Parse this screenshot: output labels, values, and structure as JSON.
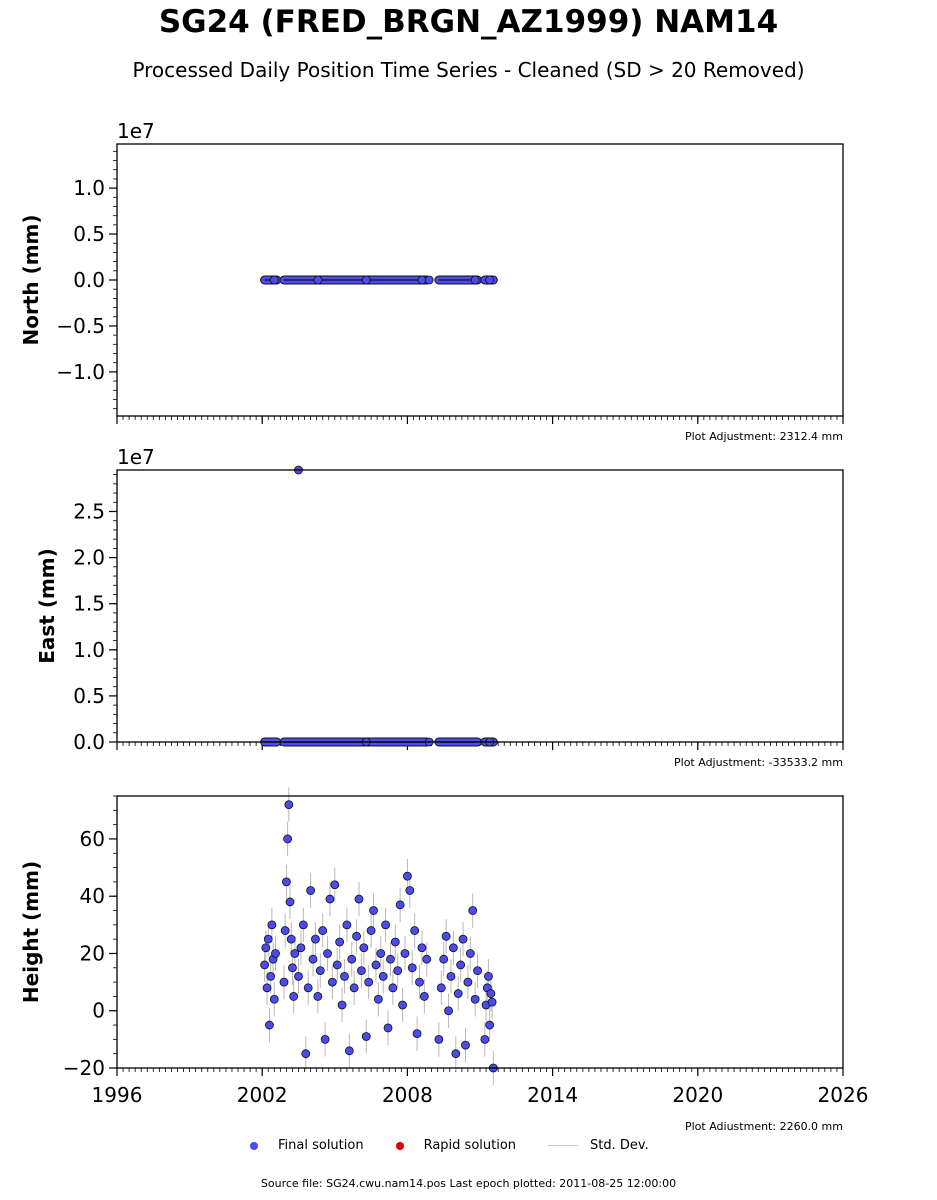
{
  "title": "SG24 (FRED_BRGN_AZ1999) NAM14",
  "subtitle": "Processed Daily Position Time Series - Cleaned (SD > 20 Removed)",
  "legend": {
    "final": "Final solution",
    "rapid": "Rapid solution",
    "std": "Std. Dev.",
    "final_color": "#4b4bf0",
    "rapid_color": "#dd0000"
  },
  "source": "Source file: SG24.cwu.nam14.pos  Last epoch plotted: 2011-08-25 12:00:00",
  "chart_data": [
    {
      "type": "scatter",
      "ylabel": "North (mm)",
      "offset_label": "1e7",
      "adjustment": "Plot Adjustment: 2312.4 mm",
      "xlim": [
        1996,
        2026
      ],
      "ylim": [
        -14800000.0,
        14800000.0
      ],
      "yticks": [
        -10000000.0,
        -5000000.0,
        0,
        5000000.0,
        10000000.0
      ],
      "ytick_labels": [
        "−1.0",
        "−0.5",
        "0.0",
        "0.5",
        "1.0"
      ],
      "xticks": [
        1996,
        2002,
        2008,
        2014,
        2020,
        2026
      ],
      "xtick_labels": [
        "",
        "",
        "",
        "",
        "",
        ""
      ],
      "segments": [
        [
          2002.1,
          2002.6
        ],
        [
          2002.9,
          2008.8
        ],
        [
          2009.3,
          2010.9
        ],
        [
          2011.2,
          2011.55
        ]
      ],
      "points": [
        [
          2002.5,
          0
        ],
        [
          2004.3,
          0
        ],
        [
          2006.3,
          0
        ],
        [
          2008.6,
          0
        ],
        [
          2008.9,
          0
        ],
        [
          2010.8,
          0
        ],
        [
          2011.4,
          0
        ]
      ]
    },
    {
      "type": "scatter",
      "ylabel": "East (mm)",
      "offset_label": "1e7",
      "adjustment": "Plot Adjustment: -33533.2 mm",
      "xlim": [
        1996,
        2026
      ],
      "ylim": [
        0,
        29500000.0
      ],
      "yticks": [
        0,
        5000000.0,
        10000000.0,
        15000000.0,
        20000000.0,
        25000000.0
      ],
      "ytick_labels": [
        "0.0",
        "0.5",
        "1.0",
        "1.5",
        "2.0",
        "2.5"
      ],
      "xticks": [
        1996,
        2002,
        2008,
        2014,
        2020,
        2026
      ],
      "xtick_labels": [
        "",
        "",
        "",
        "",
        "",
        ""
      ],
      "segments": [
        [
          2002.1,
          2002.6
        ],
        [
          2002.9,
          2008.8
        ],
        [
          2009.3,
          2010.9
        ],
        [
          2011.2,
          2011.55
        ]
      ],
      "points": [
        [
          2003.5,
          29500000.0
        ],
        [
          2006.3,
          0
        ],
        [
          2008.9,
          0
        ],
        [
          2011.4,
          0
        ]
      ]
    },
    {
      "type": "scatter",
      "ylabel": "Height (mm)",
      "adjustment": "Plot Adjustment: 2260.0 mm",
      "xlim": [
        1996,
        2026
      ],
      "ylim": [
        -20,
        75
      ],
      "yticks": [
        -20,
        0,
        20,
        40,
        60
      ],
      "ytick_labels": [
        "−20",
        "0",
        "20",
        "40",
        "60"
      ],
      "xticks": [
        1996,
        2002,
        2008,
        2014,
        2020,
        2026
      ],
      "xtick_labels": [
        "1996",
        "2002",
        "2008",
        "2014",
        "2020",
        "2026"
      ],
      "points": [
        [
          2002.1,
          16
        ],
        [
          2002.15,
          22
        ],
        [
          2002.2,
          8
        ],
        [
          2002.25,
          25
        ],
        [
          2002.3,
          -5
        ],
        [
          2002.35,
          12
        ],
        [
          2002.4,
          30
        ],
        [
          2002.45,
          18
        ],
        [
          2002.5,
          4
        ],
        [
          2002.55,
          20
        ],
        [
          2002.9,
          10
        ],
        [
          2002.95,
          28
        ],
        [
          2003.0,
          45
        ],
        [
          2003.05,
          60
        ],
        [
          2003.1,
          72
        ],
        [
          2003.15,
          38
        ],
        [
          2003.2,
          25
        ],
        [
          2003.25,
          15
        ],
        [
          2003.3,
          5
        ],
        [
          2003.35,
          20
        ],
        [
          2003.5,
          12
        ],
        [
          2003.6,
          22
        ],
        [
          2003.7,
          30
        ],
        [
          2003.8,
          -15
        ],
        [
          2003.9,
          8
        ],
        [
          2004.0,
          42
        ],
        [
          2004.1,
          18
        ],
        [
          2004.2,
          25
        ],
        [
          2004.3,
          5
        ],
        [
          2004.4,
          14
        ],
        [
          2004.5,
          28
        ],
        [
          2004.6,
          -10
        ],
        [
          2004.7,
          20
        ],
        [
          2004.8,
          39
        ],
        [
          2004.9,
          10
        ],
        [
          2005.0,
          44
        ],
        [
          2005.1,
          16
        ],
        [
          2005.2,
          24
        ],
        [
          2005.3,
          2
        ],
        [
          2005.4,
          12
        ],
        [
          2005.5,
          30
        ],
        [
          2005.6,
          -14
        ],
        [
          2005.7,
          18
        ],
        [
          2005.8,
          8
        ],
        [
          2005.9,
          26
        ],
        [
          2006.0,
          39
        ],
        [
          2006.1,
          14
        ],
        [
          2006.2,
          22
        ],
        [
          2006.3,
          -9
        ],
        [
          2006.4,
          10
        ],
        [
          2006.5,
          28
        ],
        [
          2006.6,
          35
        ],
        [
          2006.7,
          16
        ],
        [
          2006.8,
          4
        ],
        [
          2006.9,
          20
        ],
        [
          2007.0,
          12
        ],
        [
          2007.1,
          30
        ],
        [
          2007.2,
          -6
        ],
        [
          2007.3,
          18
        ],
        [
          2007.4,
          8
        ],
        [
          2007.5,
          24
        ],
        [
          2007.6,
          14
        ],
        [
          2007.7,
          37
        ],
        [
          2007.8,
          2
        ],
        [
          2007.9,
          20
        ],
        [
          2008.0,
          47
        ],
        [
          2008.1,
          42
        ],
        [
          2008.2,
          15
        ],
        [
          2008.3,
          28
        ],
        [
          2008.4,
          -8
        ],
        [
          2008.5,
          10
        ],
        [
          2008.6,
          22
        ],
        [
          2008.7,
          5
        ],
        [
          2008.8,
          18
        ],
        [
          2009.3,
          -10
        ],
        [
          2009.4,
          8
        ],
        [
          2009.5,
          18
        ],
        [
          2009.6,
          26
        ],
        [
          2009.7,
          0
        ],
        [
          2009.8,
          12
        ],
        [
          2009.9,
          22
        ],
        [
          2010.0,
          -15
        ],
        [
          2010.1,
          6
        ],
        [
          2010.2,
          16
        ],
        [
          2010.3,
          25
        ],
        [
          2010.4,
          -12
        ],
        [
          2010.5,
          10
        ],
        [
          2010.6,
          20
        ],
        [
          2010.7,
          35
        ],
        [
          2010.8,
          4
        ],
        [
          2010.9,
          14
        ],
        [
          2011.2,
          -10
        ],
        [
          2011.25,
          2
        ],
        [
          2011.3,
          8
        ],
        [
          2011.35,
          12
        ],
        [
          2011.4,
          -5
        ],
        [
          2011.45,
          6
        ],
        [
          2011.5,
          3
        ],
        [
          2011.55,
          -20
        ]
      ]
    }
  ]
}
